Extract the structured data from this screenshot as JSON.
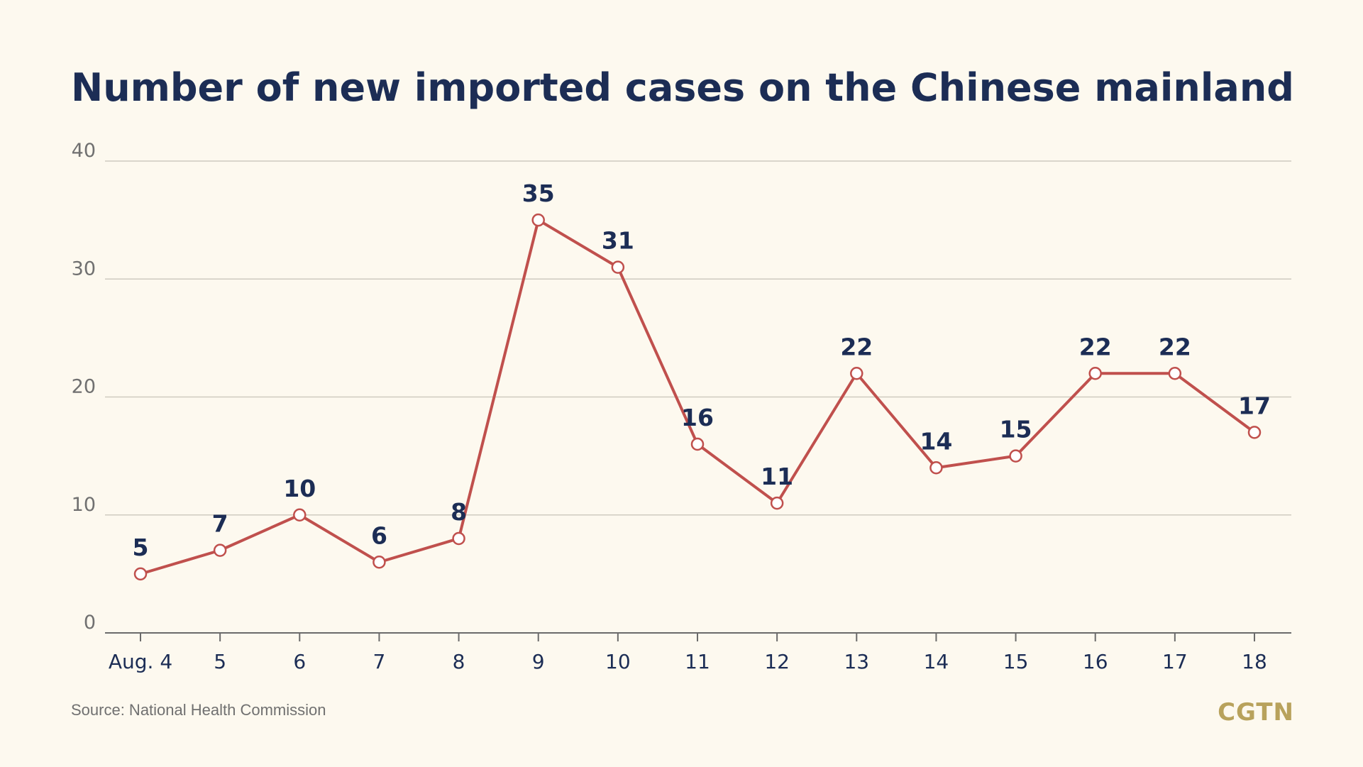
{
  "title": "Number of new imported cases on the Chinese mainland",
  "source": "Source: National Health Commission",
  "logo": "CGTN",
  "colors": {
    "background": "#fdf9ef",
    "title": "#1c2d55",
    "line": "#c0504d",
    "grid": "#cfcbc0",
    "axis_text": "#707070",
    "logo": "#b8a25c"
  },
  "chart_data": {
    "type": "line",
    "categories": [
      "Aug. 4",
      "5",
      "6",
      "7",
      "8",
      "9",
      "10",
      "11",
      "12",
      "13",
      "14",
      "15",
      "16",
      "17",
      "18"
    ],
    "series": [
      {
        "values": [
          5,
          7,
          10,
          6,
          8,
          35,
          31,
          16,
          11,
          22,
          14,
          15,
          22,
          22,
          17
        ]
      }
    ],
    "y_ticks": [
      0,
      10,
      20,
      30,
      40
    ],
    "ylim": [
      0,
      40
    ],
    "grid": true,
    "data_labels": true,
    "markers": "hollow-circle"
  }
}
